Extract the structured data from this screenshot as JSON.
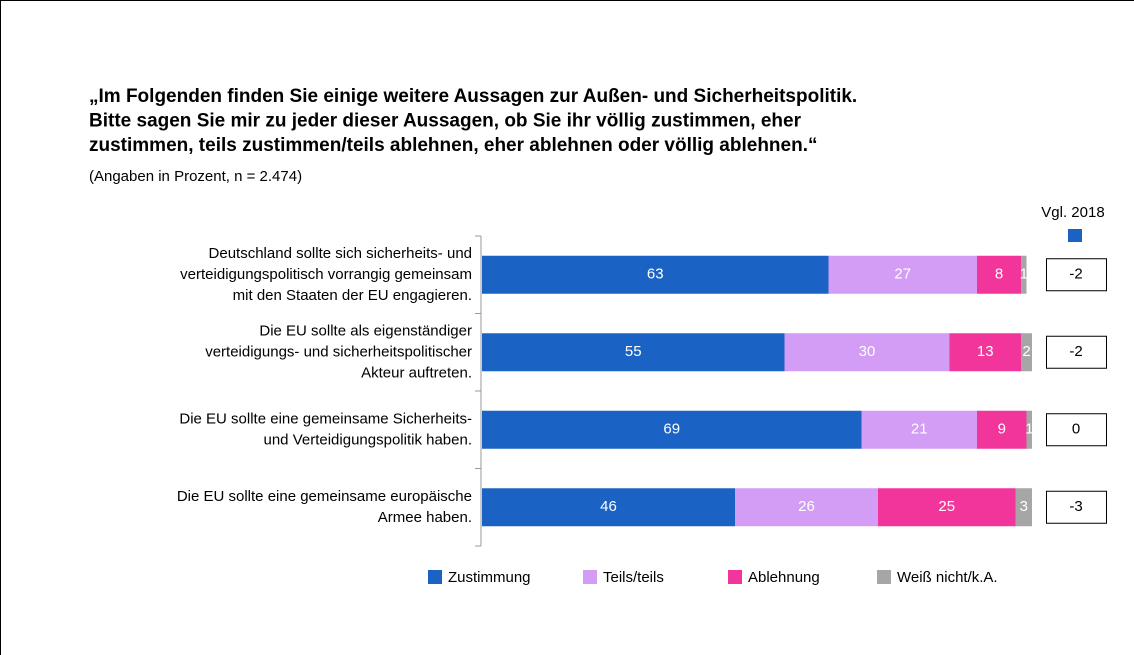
{
  "chart_data": {
    "type": "stacked_bar_horizontal",
    "title": "„Im Folgenden finden Sie einige weitere Aussagen zur Außen- und Sicherheitspolitik.\nBitte sagen Sie mir zu jeder dieser Aussagen, ob Sie ihr völlig zustimmen, eher\nzustimmen, teils zustimmen/teils ablehnen, eher ablehnen oder völlig ablehnen.“",
    "subtitle": "(Angaben in Prozent, n = 2.474)",
    "categories": [
      "Deutschland sollte sich sicherheits- und\nverteidigungspolitisch vorrangig gemeinsam\nmit den Staaten der EU engagieren.",
      "Die EU sollte als eigenständiger\nverteidigungs- und sicherheitspolitischer\nAkteur auftreten.",
      "Die EU sollte eine gemeinsame Sicherheits-\nund Verteidigungspolitik haben.",
      "Die EU sollte eine gemeinsame europäische\nArmee haben."
    ],
    "series": [
      {
        "name": "Zustimmung",
        "color": "#1a63c4",
        "values": [
          63,
          55,
          69,
          46
        ]
      },
      {
        "name": "Teils/teils",
        "color": "#d39cf5",
        "values": [
          27,
          30,
          21,
          26
        ]
      },
      {
        "name": "Ablehnung",
        "color": "#f2359b",
        "values": [
          8,
          13,
          9,
          25
        ]
      },
      {
        "name": "Weiß nicht/k.A.",
        "color": "#a6a6a6",
        "values": [
          1,
          2,
          1,
          3
        ]
      }
    ],
    "xlim": [
      0,
      100
    ],
    "comparison": {
      "label": "Vgl. 2018",
      "color": "#1a63c4",
      "values": [
        -2,
        -2,
        0,
        -3
      ]
    }
  }
}
